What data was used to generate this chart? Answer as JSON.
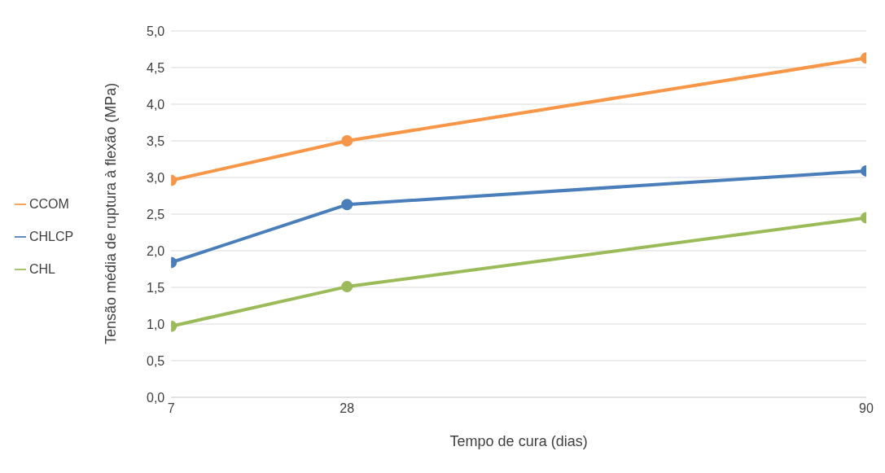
{
  "chart_data": {
    "type": "line",
    "xlabel": "Tempo de cura (dias)",
    "ylabel": "Tensão média de ruptura à flexão (MPa)",
    "x": [
      7,
      28,
      90
    ],
    "series": [
      {
        "name": "CCOM",
        "color": "#f79646",
        "values": [
          2.96,
          3.5,
          4.63
        ]
      },
      {
        "name": "CHLCP",
        "color": "#4a7ebb",
        "values": [
          1.84,
          2.63,
          3.09
        ]
      },
      {
        "name": "CHL",
        "color": "#9bbb59",
        "values": [
          0.97,
          1.51,
          2.45
        ]
      }
    ],
    "xlim": [
      7,
      90
    ],
    "xticks": [
      7,
      28,
      90
    ],
    "ylim": [
      0,
      5
    ],
    "yticks": [
      {
        "value": 0,
        "label": "0,0"
      },
      {
        "value": 0.5,
        "label": "0,5"
      },
      {
        "value": 1,
        "label": "1,0"
      },
      {
        "value": 1.5,
        "label": "1,5"
      },
      {
        "value": 2,
        "label": "2,0"
      },
      {
        "value": 2.5,
        "label": "2,5"
      },
      {
        "value": 3,
        "label": "3,0"
      },
      {
        "value": 3.5,
        "label": "3,5"
      },
      {
        "value": 4,
        "label": "4,0"
      },
      {
        "value": 4.5,
        "label": "4,5"
      },
      {
        "value": 5,
        "label": "5,0"
      }
    ],
    "grid": "y",
    "legend": "left",
    "marker": "circle",
    "line_style": "solid"
  }
}
